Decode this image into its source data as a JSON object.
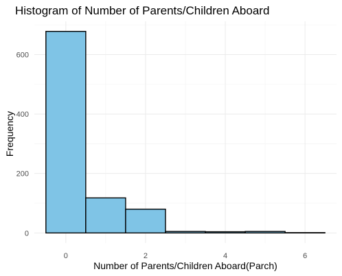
{
  "chart_data": {
    "type": "bar",
    "title": "Histogram of Number of Parents/Children Aboard",
    "xlabel": "Number of Parents/Children Aboard(Parch)",
    "ylabel": "Frequency",
    "categories": [
      "0",
      "1",
      "2",
      "3",
      "4",
      "5",
      "6"
    ],
    "bins": [
      {
        "center": 0,
        "count": 678
      },
      {
        "center": 1,
        "count": 118
      },
      {
        "center": 2,
        "count": 80
      },
      {
        "center": 3,
        "count": 5
      },
      {
        "center": 4,
        "count": 4
      },
      {
        "center": 5,
        "count": 5
      },
      {
        "center": 6,
        "count": 1
      }
    ],
    "xlim": [
      -0.5,
      6.5
    ],
    "ylim": [
      0,
      700
    ],
    "x_ticks": [
      "0",
      "2",
      "4",
      "6"
    ],
    "y_ticks": [
      "0",
      "200",
      "400",
      "600"
    ],
    "grid": true,
    "colors": {
      "bar_fill": "#7fc4e6",
      "bar_outline": "#000000"
    }
  }
}
